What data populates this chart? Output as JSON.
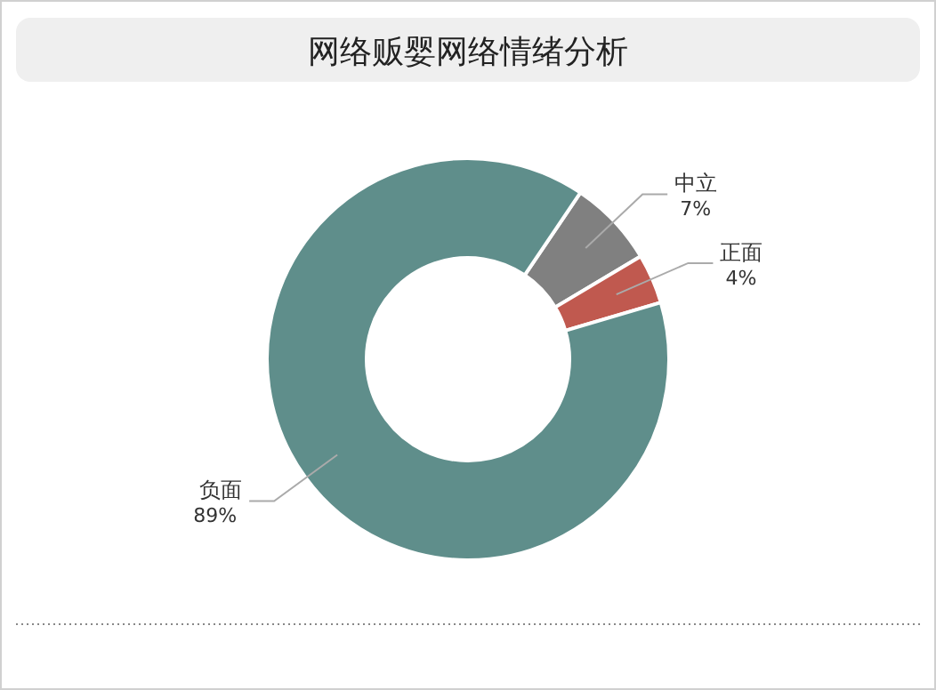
{
  "chart_data": {
    "type": "donut",
    "title": "网络贩婴网络情绪分析",
    "categories": [
      "中立",
      "正面",
      "负面"
    ],
    "values": [
      7,
      4,
      89
    ],
    "colors": [
      "#808080",
      "#c0594f",
      "#5f8e8b"
    ],
    "value_labels": [
      "7%",
      "4%",
      "89%"
    ]
  }
}
